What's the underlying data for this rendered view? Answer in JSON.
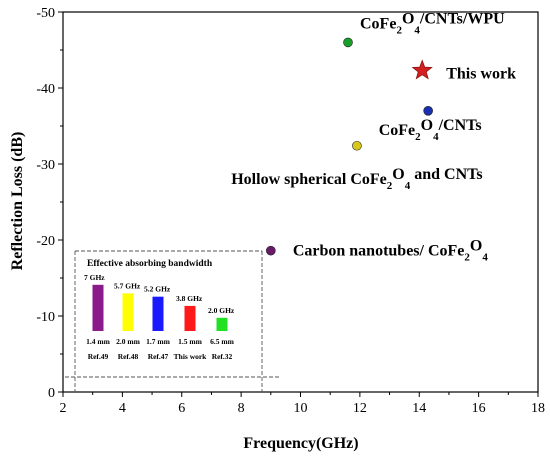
{
  "chart_data": {
    "type": "scatter",
    "xlabel": "Frequency(GHz)",
    "ylabel": "Reflection Loss (dB)",
    "xlim": [
      2,
      18
    ],
    "ylim": [
      0,
      -50
    ],
    "x_ticks": [
      "2",
      "4",
      "6",
      "8",
      "10",
      "12",
      "14",
      "16",
      "18"
    ],
    "y_ticks": [
      "0",
      "-10",
      "-20",
      "-30",
      "-40",
      "-50"
    ],
    "points": [
      {
        "label_main": "CoFe",
        "label_sub1": "2",
        "label_mid": "O",
        "label_sub2": "4",
        "label_tail": "/CNTs/WPU",
        "x": 11.6,
        "y": -46.0,
        "color": "#1a9e2a",
        "marker": "circle"
      },
      {
        "label_main": "This work",
        "label_sub1": "",
        "label_mid": "",
        "label_sub2": "",
        "label_tail": "",
        "x": 14.1,
        "y": -42.3,
        "color": "#d42020",
        "marker": "star"
      },
      {
        "label_main": "CoFe",
        "label_sub1": "2",
        "label_mid": "O",
        "label_sub2": "4",
        "label_tail": "/CNTs",
        "x": 14.3,
        "y": -37.0,
        "color": "#1a2fb0",
        "marker": "circle"
      },
      {
        "label_main": "Hollow spherical CoFe",
        "label_sub1": "2",
        "label_mid": "O",
        "label_sub2": "4",
        "label_tail": " and CNTs",
        "x": 11.9,
        "y": -32.4,
        "color": "#d8c81c",
        "marker": "circle"
      },
      {
        "label_main": "Carbon nanotubes/ CoFe",
        "label_sub1": "2",
        "label_mid": "O",
        "label_sub2": "4",
        "label_tail": "",
        "x": 9.0,
        "y": -18.6,
        "color": "#6a1a6a",
        "marker": "circle"
      }
    ],
    "inset": {
      "title": "Effective absorbing bandwidth",
      "bars": [
        {
          "bandwidth": "7 GHz",
          "thickness": "1.4 mm",
          "ref": "Ref.49",
          "value": 7.0,
          "color": "#8b1a8b"
        },
        {
          "bandwidth": "5.7 GHz",
          "thickness": "2.0 mm",
          "ref": "Ref.48",
          "value": 5.7,
          "color": "#ffff00"
        },
        {
          "bandwidth": "5.2 GHz",
          "thickness": "1.7 mm",
          "ref": "Ref.47",
          "value": 5.2,
          "color": "#1a1aff"
        },
        {
          "bandwidth": "3.8 GHz",
          "thickness": "1.5 mm",
          "ref": "This work",
          "value": 3.8,
          "color": "#ff1a1a"
        },
        {
          "bandwidth": "2.0 GHz",
          "thickness": "6.5 mm",
          "ref": "Ref.32",
          "value": 2.0,
          "color": "#22e022"
        }
      ]
    }
  }
}
